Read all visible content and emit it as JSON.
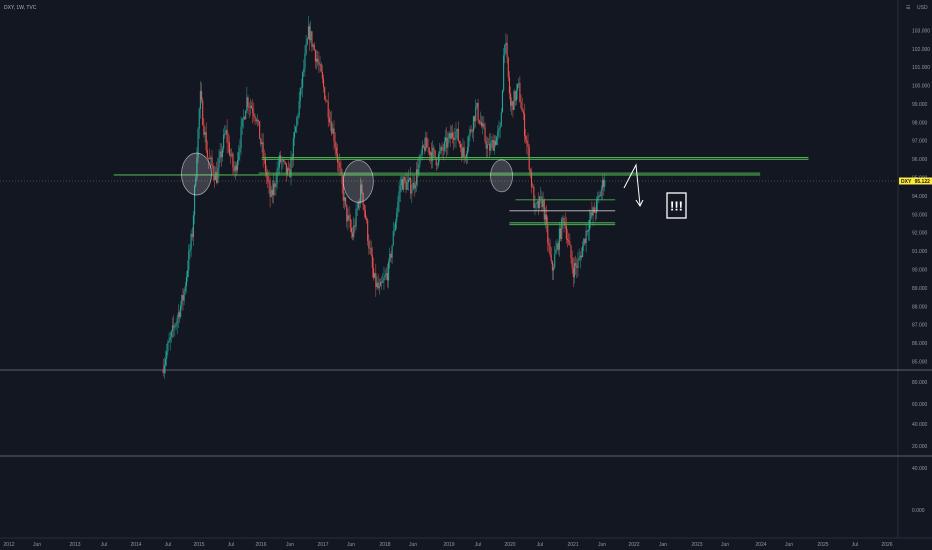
{
  "header": {
    "symbol": "DXY",
    "interval": "1W",
    "exchange": "TVC",
    "title": "DXY, 1W, TVC"
  },
  "currency": "USD",
  "price_badge": {
    "symbol": "DXY",
    "value": "95.122"
  },
  "annotation": {
    "text": "!!!"
  },
  "colors": {
    "background": "#131722",
    "up": "#26a69a",
    "down": "#ef5350",
    "level": "#4caf50",
    "price_line": "#ffeb3b",
    "axis_text": "#9598a1"
  },
  "chart_data": [
    {
      "type": "candlestick",
      "title": "",
      "x_range": [
        "2012-01",
        "2026-06"
      ],
      "ylim": [
        84.6,
        104.5
      ],
      "y_ticks": [
        "85.000",
        "86.000",
        "87.000",
        "88.000",
        "89.000",
        "90.000",
        "91.000",
        "92.000",
        "93.000",
        "94.000",
        "95.000",
        "96.000",
        "97.000",
        "98.000",
        "99.000",
        "100.000",
        "101.000",
        "102.000",
        "103.000"
      ],
      "x_ticks": [
        "2012",
        "Jun",
        "2013",
        "Jul",
        "2014",
        "Jul",
        "2015",
        "Jul",
        "2016",
        "Jun",
        "2017",
        "Jun",
        "2018",
        "Jun",
        "2019",
        "Jul",
        "2020",
        "Jul",
        "2021",
        "Jun",
        "2022",
        "Jan",
        "2023",
        "Jun",
        "2024",
        "Jun",
        "2025",
        "Jul",
        "2026"
      ],
      "anchors": [
        {
          "t": 2014.55,
          "v": 84.6
        },
        {
          "t": 2014.65,
          "v": 85.8
        },
        {
          "t": 2014.9,
          "v": 88.5
        },
        {
          "t": 2015.05,
          "v": 92.0
        },
        {
          "t": 2015.18,
          "v": 99.5
        },
        {
          "t": 2015.3,
          "v": 96.2
        },
        {
          "t": 2015.45,
          "v": 95.0
        },
        {
          "t": 2015.6,
          "v": 97.5
        },
        {
          "t": 2015.75,
          "v": 95.2
        },
        {
          "t": 2015.95,
          "v": 99.3
        },
        {
          "t": 2016.1,
          "v": 98.5
        },
        {
          "t": 2016.35,
          "v": 93.8
        },
        {
          "t": 2016.5,
          "v": 96.0
        },
        {
          "t": 2016.65,
          "v": 95.0
        },
        {
          "t": 2016.85,
          "v": 99.8
        },
        {
          "t": 2016.98,
          "v": 103.0
        },
        {
          "t": 2017.15,
          "v": 101.0
        },
        {
          "t": 2017.4,
          "v": 97.2
        },
        {
          "t": 2017.6,
          "v": 93.0
        },
        {
          "t": 2017.7,
          "v": 91.8
        },
        {
          "t": 2017.85,
          "v": 94.5
        },
        {
          "t": 2018.05,
          "v": 89.5
        },
        {
          "t": 2018.15,
          "v": 88.8
        },
        {
          "t": 2018.3,
          "v": 90.0
        },
        {
          "t": 2018.5,
          "v": 94.8
        },
        {
          "t": 2018.7,
          "v": 94.5
        },
        {
          "t": 2018.9,
          "v": 96.8
        },
        {
          "t": 2019.1,
          "v": 96.0
        },
        {
          "t": 2019.4,
          "v": 97.6
        },
        {
          "t": 2019.55,
          "v": 96.2
        },
        {
          "t": 2019.75,
          "v": 98.8
        },
        {
          "t": 2019.95,
          "v": 96.5
        },
        {
          "t": 2020.15,
          "v": 97.5
        },
        {
          "t": 2020.22,
          "v": 102.8
        },
        {
          "t": 2020.32,
          "v": 98.8
        },
        {
          "t": 2020.45,
          "v": 99.9
        },
        {
          "t": 2020.6,
          "v": 96.6
        },
        {
          "t": 2020.72,
          "v": 93.2
        },
        {
          "t": 2020.85,
          "v": 93.8
        },
        {
          "t": 2021.0,
          "v": 89.9
        },
        {
          "t": 2021.2,
          "v": 92.9
        },
        {
          "t": 2021.35,
          "v": 90.0
        },
        {
          "t": 2021.45,
          "v": 90.4
        },
        {
          "t": 2021.6,
          "v": 92.5
        },
        {
          "t": 2021.75,
          "v": 93.5
        },
        {
          "t": 2021.88,
          "v": 95.12
        }
      ]
    },
    {
      "type": "area",
      "title": "",
      "ylim": [
        78.0,
        90.0
      ],
      "y_ticks": [
        "80.000",
        "60.000",
        "40.000"
      ]
    },
    {
      "type": "area",
      "title": "",
      "ylim": [
        -10.0,
        30.0
      ],
      "y_ticks": [
        "20.000",
        "40.000",
        "0.000"
      ]
    }
  ],
  "levels": [
    {
      "from": 2013.75,
      "to": 2024.45,
      "v": 95.15
    },
    {
      "from": 2016.15,
      "to": 2024.45,
      "v": 95.25
    },
    {
      "from": 2016.2,
      "to": 2025.25,
      "v": 96.1
    },
    {
      "from": 2016.2,
      "to": 2025.25,
      "v": 96.0
    },
    {
      "from": 2020.4,
      "to": 2022.05,
      "v": 93.8
    },
    {
      "from": 2020.3,
      "to": 2022.05,
      "v": 93.2
    },
    {
      "from": 2020.3,
      "to": 2022.05,
      "v": 92.55
    },
    {
      "from": 2020.3,
      "to": 2022.05,
      "v": 92.45
    }
  ],
  "ellipses": [
    {
      "t": 2015.12,
      "v": 95.2
    },
    {
      "t": 2017.8,
      "v": 94.8
    },
    {
      "t": 2020.17,
      "v": 95.1
    }
  ]
}
